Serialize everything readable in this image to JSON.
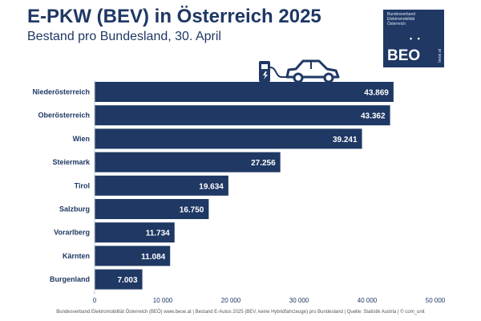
{
  "header": {
    "title": "E-PKW (BEV) in Österreich 2025",
    "subtitle": "Bestand pro Bundesland, 30. April"
  },
  "logo": {
    "org_name": "Bundesverband Elektromobilität Österreich",
    "dots": "• •",
    "abbr": "BEO",
    "url": "beoe.at"
  },
  "icons": [
    "ev-charger-icon",
    "car-icon"
  ],
  "footer": {
    "text": "Bundesverband Elektromobilität Österreich (BEÖ) www.beoe.at | Bestand E-Autos 2025 (BEV, keine Hybridfahrzeuge) pro Bundesland | Quelle: Statistik Austria | © com_unit"
  },
  "colors": {
    "bar": "#1f3864",
    "text": "#1f3864"
  },
  "chart_data": {
    "type": "bar",
    "orientation": "horizontal",
    "categories": [
      "Niederösterreich",
      "Oberösterreich",
      "Wien",
      "Steiermark",
      "Tirol",
      "Salzburg",
      "Vorarlberg",
      "Kärnten",
      "Burgenland"
    ],
    "values": [
      43869,
      43362,
      39241,
      27256,
      19634,
      16750,
      11734,
      11084,
      7003
    ],
    "value_labels": [
      "43.869",
      "43.362",
      "39.241",
      "27.256",
      "19.634",
      "16.750",
      "11.734",
      "11.084",
      "7.003"
    ],
    "xlim": [
      0,
      50000
    ],
    "xticks": [
      0,
      10000,
      20000,
      30000,
      40000,
      50000
    ],
    "xtick_labels": [
      "0",
      "10 000",
      "20 000",
      "30 000",
      "40 000",
      "50 000"
    ],
    "grid": false
  }
}
